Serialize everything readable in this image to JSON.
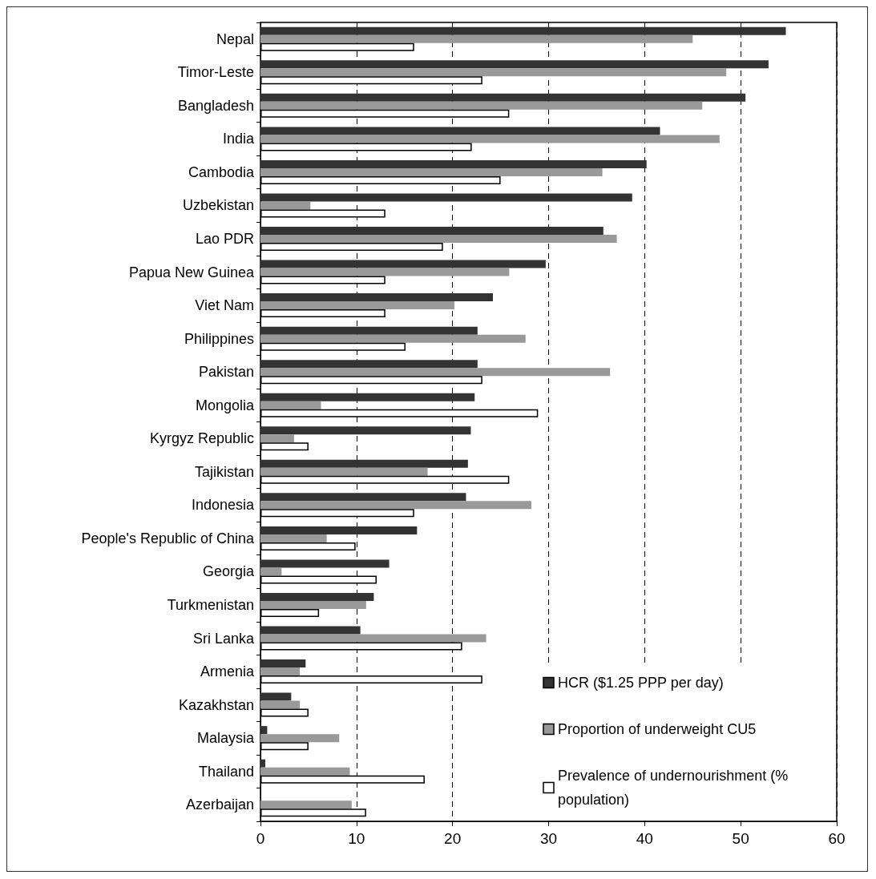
{
  "chart_data": {
    "type": "bar",
    "orientation": "horizontal",
    "categories": [
      "Nepal",
      "Timor-Leste",
      "Bangladesh",
      "India",
      "Cambodia",
      "Uzbekistan",
      "Lao PDR",
      "Papua New Guinea",
      "Viet Nam",
      "Philippines",
      "Pakistan",
      "Mongolia",
      "Kyrgyz Republic",
      "Tajikistan",
      "Indonesia",
      "People's Republic of China",
      "Georgia",
      "Turkmenistan",
      "Sri Lanka",
      "Armenia",
      "Kazakhstan",
      "Malaysia",
      "Thailand",
      "Azerbaijan"
    ],
    "series": [
      {
        "name": "HCR ($1.25 PPP per day)",
        "color": "#333333",
        "values": [
          54.7,
          52.9,
          50.5,
          41.6,
          40.2,
          38.7,
          35.7,
          29.7,
          24.2,
          22.6,
          22.6,
          22.3,
          21.9,
          21.6,
          21.4,
          16.3,
          13.4,
          11.8,
          10.4,
          4.7,
          3.2,
          0.7,
          0.5,
          null
        ]
      },
      {
        "name": "Proportion of underweight CU5",
        "color": "#999999",
        "values": [
          45.0,
          48.5,
          46.0,
          47.8,
          35.6,
          5.2,
          37.1,
          25.9,
          20.2,
          27.6,
          36.4,
          6.3,
          3.5,
          17.4,
          28.2,
          6.9,
          2.2,
          11.0,
          23.5,
          4.1,
          4.1,
          8.2,
          9.3,
          9.5
        ]
      },
      {
        "name": "Prevalence of undernourishment (% population)",
        "color": "#ffffff",
        "values": [
          16.0,
          23.1,
          25.9,
          22.0,
          25.0,
          13.0,
          19.0,
          13.0,
          13.0,
          15.1,
          23.1,
          28.9,
          5.0,
          25.9,
          16.0,
          9.9,
          12.1,
          6.1,
          21.0,
          23.1,
          5.0,
          5.0,
          17.1,
          11.0
        ]
      }
    ],
    "xlim": [
      0,
      60
    ],
    "xticks": [
      0,
      10,
      20,
      30,
      40,
      50,
      60
    ],
    "grid": "x",
    "legend": "right"
  }
}
